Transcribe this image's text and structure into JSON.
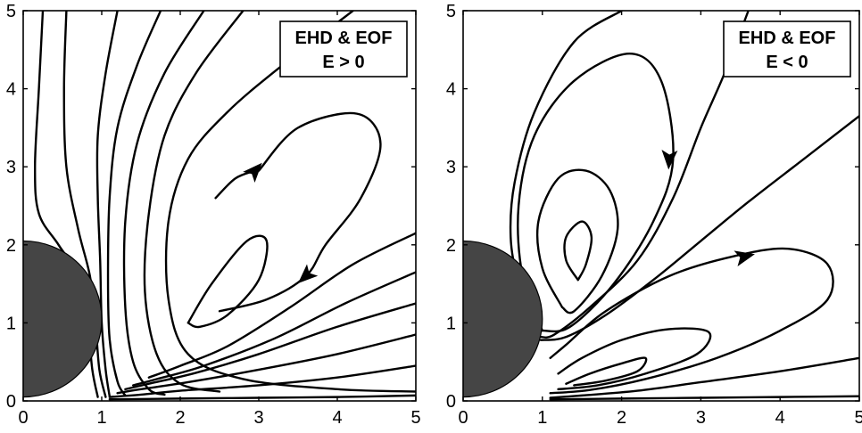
{
  "chart_data": [
    {
      "type": "line",
      "legend": [
        "EHD & EOF",
        "E > 0"
      ],
      "xlim": [
        0,
        5
      ],
      "ylim": [
        0,
        5
      ],
      "xticks": [
        "0",
        "1",
        "2",
        "3",
        "4",
        "5"
      ],
      "yticks": [
        "0",
        "1",
        "2",
        "3",
        "4",
        "5"
      ],
      "legend_placement": "top-right",
      "grid": false,
      "sphere": {
        "center": [
          0,
          1.05
        ],
        "radius": 1.0,
        "color": "#454545"
      },
      "series": [
        {
          "points": [
            [
              0.25,
              5
            ],
            [
              0.2,
              4
            ],
            [
              0.15,
              3
            ],
            [
              0.2,
              2.4
            ],
            [
              0.45,
              2.0
            ],
            [
              0.7,
              1.6
            ],
            [
              0.82,
              1.0
            ],
            [
              0.88,
              0.4
            ],
            [
              0.95,
              0.05
            ]
          ]
        },
        {
          "points": [
            [
              0.55,
              5
            ],
            [
              0.52,
              4
            ],
            [
              0.55,
              3
            ],
            [
              0.7,
              2.2
            ],
            [
              0.85,
              1.6
            ],
            [
              0.92,
              1.0
            ],
            [
              0.97,
              0.4
            ],
            [
              1.05,
              0.05
            ]
          ]
        },
        {
          "points": [
            [
              1.2,
              5
            ],
            [
              1.05,
              4.2
            ],
            [
              0.95,
              3.4
            ],
            [
              0.95,
              2.6
            ],
            [
              0.98,
              1.8
            ],
            [
              1.0,
              1.0
            ],
            [
              1.05,
              0.4
            ],
            [
              1.1,
              0.06
            ]
          ]
        },
        {
          "points": [
            [
              1.75,
              5
            ],
            [
              1.45,
              4.3
            ],
            [
              1.2,
              3.5
            ],
            [
              1.1,
              2.6
            ],
            [
              1.08,
              1.6
            ],
            [
              1.1,
              0.8
            ],
            [
              1.2,
              0.25
            ],
            [
              1.3,
              0.07
            ]
          ]
        },
        {
          "points": [
            [
              2.3,
              5
            ],
            [
              1.8,
              4.2
            ],
            [
              1.45,
              3.3
            ],
            [
              1.3,
              2.3
            ],
            [
              1.3,
              1.2
            ],
            [
              1.4,
              0.5
            ],
            [
              1.6,
              0.15
            ],
            [
              1.8,
              0.08
            ]
          ]
        },
        {
          "points": [
            [
              2.8,
              5
            ],
            [
              2.2,
              4.2
            ],
            [
              1.8,
              3.4
            ],
            [
              1.6,
              2.4
            ],
            [
              1.55,
              1.4
            ],
            [
              1.7,
              0.6
            ],
            [
              2.0,
              0.22
            ],
            [
              2.5,
              0.12
            ]
          ]
        },
        {
          "points": [
            [
              4.2,
              5
            ],
            [
              3.3,
              4.3
            ],
            [
              2.6,
              3.7
            ],
            [
              2.1,
              3.1
            ],
            [
              1.85,
              2.3
            ],
            [
              1.85,
              1.3
            ],
            [
              2.1,
              0.6
            ],
            [
              2.8,
              0.28
            ],
            [
              4.0,
              0.15
            ],
            [
              5,
              0.12
            ]
          ]
        },
        {
          "points": [
            [
              5,
              2.15
            ],
            [
              4.2,
              1.75
            ],
            [
              3.4,
              1.2
            ],
            [
              2.6,
              0.7
            ],
            [
              2.0,
              0.45
            ],
            [
              1.6,
              0.3
            ]
          ]
        },
        {
          "points": [
            [
              5,
              1.65
            ],
            [
              4.1,
              1.25
            ],
            [
              3.2,
              0.8
            ],
            [
              2.3,
              0.45
            ],
            [
              1.7,
              0.28
            ],
            [
              1.4,
              0.2
            ]
          ]
        },
        {
          "points": [
            [
              5,
              1.25
            ],
            [
              4.0,
              0.95
            ],
            [
              3.0,
              0.6
            ],
            [
              2.2,
              0.36
            ],
            [
              1.6,
              0.22
            ],
            [
              1.3,
              0.15
            ]
          ]
        },
        {
          "points": [
            [
              5,
              0.85
            ],
            [
              4.0,
              0.6
            ],
            [
              3.0,
              0.4
            ],
            [
              2.1,
              0.24
            ],
            [
              1.5,
              0.15
            ],
            [
              1.2,
              0.1
            ]
          ]
        },
        {
          "points": [
            [
              5,
              0.45
            ],
            [
              4.0,
              0.3
            ],
            [
              3.0,
              0.2
            ],
            [
              2.0,
              0.13
            ],
            [
              1.5,
              0.08
            ],
            [
              1.1,
              0.05
            ]
          ]
        },
        {
          "points": [
            [
              5,
              0.07
            ],
            [
              4.0,
              0.05
            ],
            [
              3.0,
              0.04
            ],
            [
              2.0,
              0.03
            ],
            [
              1.1,
              0.02
            ]
          ]
        },
        {
          "points": [
            [
              3.0,
              2.95
            ],
            [
              3.5,
              3.5
            ],
            [
              4.25,
              3.68
            ],
            [
              4.55,
              3.3
            ],
            [
              4.3,
              2.6
            ],
            [
              3.85,
              2.0
            ],
            [
              3.6,
              1.6
            ],
            [
              3.1,
              1.3
            ],
            [
              2.5,
              1.15
            ]
          ],
          "arrow_at": [
            [
              2.95,
              2.95
            ],
            [
              3.6,
              1.6
            ]
          ]
        },
        {
          "points": [
            [
              2.1,
              1.0
            ],
            [
              2.4,
              1.5
            ],
            [
              2.85,
              2.05
            ],
            [
              3.1,
              2.05
            ],
            [
              3.0,
              1.55
            ],
            [
              2.6,
              1.1
            ],
            [
              2.25,
              0.95
            ],
            [
              2.1,
              1.0
            ]
          ]
        },
        {
          "points": [
            [
              2.45,
              2.6
            ],
            [
              2.7,
              2.85
            ],
            [
              2.95,
              2.95
            ]
          ]
        }
      ]
    },
    {
      "type": "line",
      "legend": [
        "EHD & EOF",
        "E < 0"
      ],
      "xlim": [
        0,
        5
      ],
      "ylim": [
        0,
        5
      ],
      "xticks": [
        "0",
        "1",
        "2",
        "3",
        "4",
        "5"
      ],
      "yticks": [
        "0",
        "1",
        "2",
        "3",
        "4",
        "5"
      ],
      "legend_placement": "top-right",
      "grid": false,
      "sphere": {
        "center": [
          0,
          1.05
        ],
        "radius": 1.0,
        "color": "#454545"
      },
      "series": [
        {
          "points": [
            [
              1.45,
              1.55
            ],
            [
              1.3,
              1.8
            ],
            [
              1.3,
              2.1
            ],
            [
              1.5,
              2.3
            ],
            [
              1.62,
              2.1
            ],
            [
              1.55,
              1.75
            ],
            [
              1.45,
              1.55
            ]
          ]
        },
        {
          "points": [
            [
              1.25,
              1.2
            ],
            [
              1.0,
              1.7
            ],
            [
              0.95,
              2.3
            ],
            [
              1.2,
              2.85
            ],
            [
              1.55,
              2.95
            ],
            [
              1.85,
              2.7
            ],
            [
              1.95,
              2.2
            ],
            [
              1.75,
              1.6
            ],
            [
              1.4,
              1.15
            ],
            [
              1.25,
              1.2
            ]
          ]
        },
        {
          "points": [
            [
              1.0,
              0.9
            ],
            [
              0.75,
              1.6
            ],
            [
              0.7,
              2.5
            ],
            [
              0.9,
              3.4
            ],
            [
              1.4,
              4.1
            ],
            [
              2.1,
              4.45
            ],
            [
              2.5,
              4.1
            ],
            [
              2.65,
              3.1
            ],
            [
              2.4,
              2.3
            ],
            [
              1.9,
              1.5
            ],
            [
              1.35,
              0.95
            ],
            [
              1.0,
              0.9
            ]
          ],
          "arrow_at": [
            [
              2.6,
              3.1
            ]
          ]
        },
        {
          "points": [
            [
              0.9,
              0.8
            ],
            [
              0.7,
              1.5
            ],
            [
              0.6,
              2.1
            ],
            [
              0.65,
              2.8
            ],
            [
              0.9,
              3.7
            ],
            [
              1.4,
              4.6
            ],
            [
              2.0,
              5.0
            ]
          ]
        },
        {
          "points": [
            [
              3.6,
              5
            ],
            [
              3.3,
              4.2
            ],
            [
              3.0,
              3.5
            ],
            [
              2.65,
              2.6
            ],
            [
              2.2,
              1.8
            ],
            [
              1.6,
              1.2
            ],
            [
              1.15,
              0.85
            ],
            [
              0.98,
              0.82
            ]
          ]
        },
        {
          "points": [
            [
              5,
              3.65
            ],
            [
              4.3,
              3.1
            ],
            [
              3.6,
              2.55
            ],
            [
              3.0,
              2.05
            ],
            [
              2.4,
              1.55
            ],
            [
              1.8,
              1.1
            ],
            [
              1.3,
              0.82
            ],
            [
              0.98,
              0.78
            ]
          ]
        },
        {
          "points": [
            [
              1.1,
              0.55
            ],
            [
              1.3,
              0.72
            ],
            [
              1.8,
              1.15
            ],
            [
              2.6,
              1.6
            ],
            [
              3.4,
              1.85
            ],
            [
              4.1,
              1.95
            ],
            [
              4.6,
              1.75
            ],
            [
              4.6,
              1.3
            ],
            [
              4.0,
              0.9
            ],
            [
              3.2,
              0.55
            ],
            [
              2.3,
              0.28
            ],
            [
              1.6,
              0.14
            ],
            [
              1.1,
              0.1
            ]
          ],
          "arrow_at": [
            [
              3.55,
              1.85
            ]
          ]
        },
        {
          "points": [
            [
              1.2,
              0.35
            ],
            [
              1.5,
              0.55
            ],
            [
              2.0,
              0.78
            ],
            [
              2.6,
              0.92
            ],
            [
              3.1,
              0.88
            ],
            [
              2.95,
              0.6
            ],
            [
              2.3,
              0.35
            ],
            [
              1.7,
              0.2
            ],
            [
              1.2,
              0.15
            ]
          ]
        },
        {
          "points": [
            [
              1.3,
              0.22
            ],
            [
              1.6,
              0.35
            ],
            [
              2.0,
              0.48
            ],
            [
              2.3,
              0.55
            ],
            [
              2.2,
              0.38
            ],
            [
              1.8,
              0.26
            ],
            [
              1.4,
              0.2
            ]
          ]
        },
        {
          "points": [
            [
              5,
              0.55
            ],
            [
              4.0,
              0.38
            ],
            [
              3.0,
              0.24
            ],
            [
              2.2,
              0.13
            ],
            [
              1.5,
              0.07
            ],
            [
              1.1,
              0.04
            ]
          ]
        },
        {
          "points": [
            [
              5,
              0.06
            ],
            [
              4.0,
              0.05
            ],
            [
              3.0,
              0.04
            ],
            [
              2.0,
              0.03
            ],
            [
              1.1,
              0.02
            ]
          ]
        }
      ]
    }
  ]
}
